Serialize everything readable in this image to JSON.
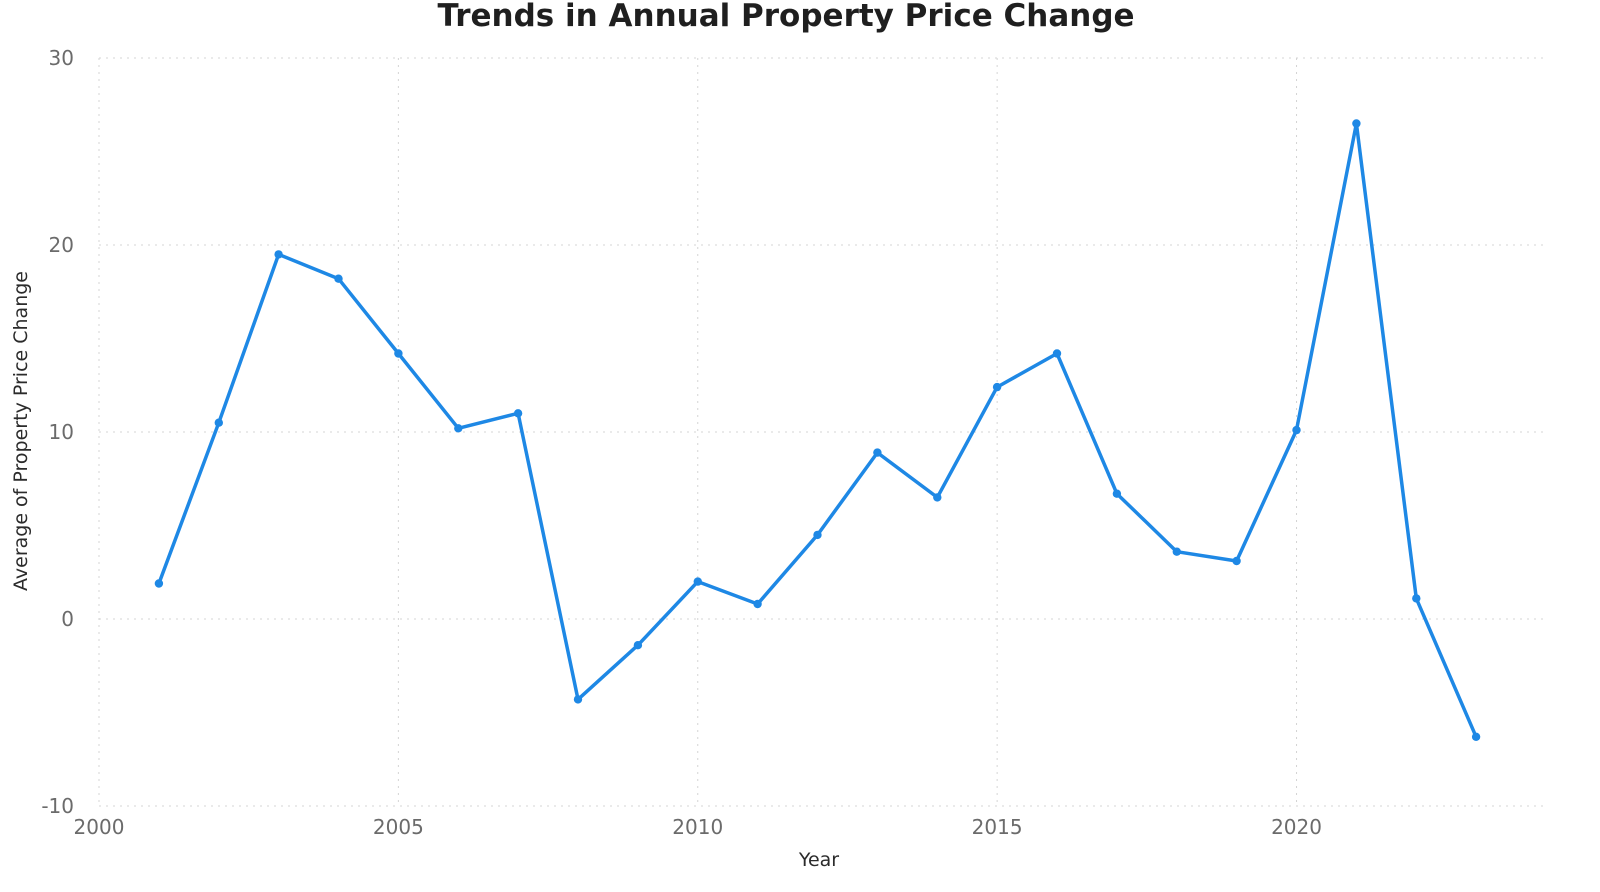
{
  "chart_data": {
    "type": "line",
    "title": "Trends in Annual Property Price Change",
    "xlabel": "Year",
    "ylabel": "Average of Property Price Change",
    "xlim": [
      2000,
      2024.2
    ],
    "ylim": [
      -10,
      30
    ],
    "x_ticks": [
      2000,
      2005,
      2010,
      2015,
      2020
    ],
    "y_ticks": [
      -10,
      0,
      10,
      20,
      30
    ],
    "grid": true,
    "legend": "none",
    "color": "#1e88e5",
    "x": [
      2001,
      2002,
      2003,
      2004,
      2005,
      2006,
      2007,
      2008,
      2009,
      2010,
      2011,
      2012,
      2013,
      2014,
      2015,
      2016,
      2017,
      2018,
      2019,
      2020,
      2021,
      2022,
      2023
    ],
    "series": [
      {
        "values": [
          1.9,
          10.5,
          19.5,
          18.2,
          14.2,
          10.2,
          11.0,
          -4.3,
          -1.4,
          2.0,
          0.8,
          4.5,
          8.9,
          6.5,
          12.4,
          14.2,
          6.7,
          3.6,
          3.1,
          10.1,
          26.5,
          1.1,
          -6.3
        ]
      }
    ]
  }
}
